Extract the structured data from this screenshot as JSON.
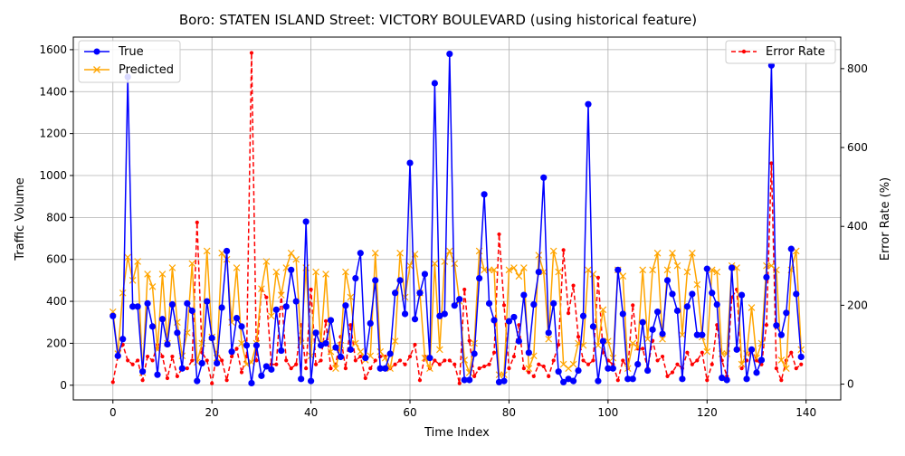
{
  "chart_data": {
    "type": "line",
    "title": "Boro: STATEN ISLAND Street: VICTORY BOULEVARD (using historical feature)",
    "xlabel": "Time Index",
    "ylabel": "Traffic Volume",
    "y2label": "Error Rate (%)",
    "xlim": [
      -8,
      147
    ],
    "ylim": [
      -70,
      1660
    ],
    "y2lim": [
      -40,
      880
    ],
    "xticks": [
      0,
      20,
      40,
      60,
      80,
      100,
      120,
      140
    ],
    "yticks": [
      0,
      200,
      400,
      600,
      800,
      1000,
      1200,
      1400,
      1600
    ],
    "y2ticks": [
      0,
      200,
      400,
      600,
      800
    ],
    "grid": true,
    "legend_left_placement": "upper-left",
    "legend_right_placement": "upper-right",
    "colors": {
      "true": "#0000ff",
      "predicted": "#ffa500",
      "error": "#ff0000"
    },
    "series": [
      {
        "name": "True",
        "axis": "left",
        "marker": "circle",
        "values": [
          330,
          140,
          220,
          1470,
          375,
          375,
          65,
          390,
          280,
          50,
          315,
          195,
          385,
          250,
          80,
          390,
          355,
          20,
          105,
          400,
          225,
          105,
          370,
          640,
          160,
          320,
          280,
          190,
          10,
          190,
          45,
          90,
          75,
          360,
          165,
          375,
          550,
          400,
          30,
          780,
          20,
          250,
          190,
          200,
          310,
          180,
          135,
          380,
          170,
          510,
          630,
          130,
          295,
          500,
          80,
          80,
          150,
          440,
          500,
          340,
          1060,
          315,
          440,
          530,
          130,
          1440,
          330,
          340,
          1580,
          380,
          410,
          25,
          25,
          150,
          510,
          910,
          390,
          310,
          15,
          20,
          305,
          325,
          210,
          430,
          155,
          385,
          540,
          990,
          250,
          390,
          65,
          15,
          30,
          20,
          70,
          330,
          1340,
          280,
          20,
          210,
          80,
          80,
          550,
          340,
          30,
          30,
          100,
          300,
          70,
          265,
          350,
          245,
          500,
          435,
          355,
          30,
          375,
          435,
          240,
          240,
          555,
          440,
          385,
          35,
          25,
          560,
          170,
          430,
          30,
          170,
          60,
          120,
          515,
          1525,
          285,
          240,
          345,
          650,
          435,
          135
        ]
      },
      {
        "name": "Predicted",
        "axis": "left",
        "marker": "x",
        "values": [
          350,
          150,
          440,
          610,
          500,
          590,
          60,
          530,
          470,
          170,
          530,
          200,
          560,
          300,
          140,
          250,
          580,
          110,
          200,
          640,
          230,
          130,
          630,
          600,
          300,
          560,
          200,
          100,
          110,
          200,
          460,
          590,
          330,
          540,
          430,
          560,
          630,
          600,
          200,
          560,
          140,
          540,
          200,
          530,
          160,
          80,
          190,
          540,
          420,
          200,
          160,
          120,
          140,
          630,
          160,
          130,
          80,
          210,
          630,
          420,
          570,
          625,
          440,
          130,
          80,
          580,
          170,
          590,
          640,
          580,
          400,
          120,
          60,
          200,
          640,
          550,
          550,
          550,
          50,
          50,
          550,
          560,
          520,
          560,
          80,
          140,
          620,
          540,
          220,
          640,
          540,
          100,
          80,
          100,
          200,
          190,
          550,
          530,
          190,
          360,
          210,
          130,
          550,
          520,
          80,
          200,
          180,
          550,
          220,
          550,
          630,
          220,
          550,
          630,
          570,
          240,
          540,
          630,
          480,
          230,
          160,
          550,
          540,
          150,
          150,
          570,
          560,
          100,
          150,
          370,
          130,
          200,
          570,
          570,
          550,
          120,
          80,
          550,
          640,
          170
        ]
      },
      {
        "name": "Error Rate",
        "axis": "right",
        "marker": "dot",
        "values": [
          5,
          70,
          100,
          60,
          50,
          60,
          10,
          70,
          60,
          100,
          70,
          15,
          70,
          20,
          40,
          40,
          60,
          410,
          80,
          60,
          2,
          80,
          60,
          10,
          70,
          90,
          30,
          70,
          840,
          60,
          240,
          220,
          50,
          50,
          230,
          60,
          40,
          50,
          150,
          40,
          240,
          50,
          60,
          160,
          40,
          50,
          120,
          40,
          150,
          60,
          70,
          15,
          40,
          60,
          70,
          70,
          40,
          50,
          60,
          50,
          70,
          100,
          10,
          70,
          40,
          60,
          50,
          60,
          60,
          50,
          2,
          240,
          110,
          20,
          40,
          45,
          50,
          80,
          380,
          200,
          40,
          70,
          150,
          40,
          30,
          20,
          50,
          45,
          20,
          60,
          100,
          340,
          180,
          250,
          120,
          60,
          50,
          60,
          270,
          80,
          60,
          50,
          10,
          60,
          40,
          200,
          90,
          90,
          40,
          110,
          60,
          70,
          20,
          30,
          50,
          40,
          80,
          50,
          60,
          80,
          10,
          50,
          150,
          60,
          20,
          220,
          240,
          40,
          60,
          90,
          60,
          50,
          150,
          560,
          40,
          10,
          60,
          80,
          40,
          50
        ]
      }
    ]
  }
}
